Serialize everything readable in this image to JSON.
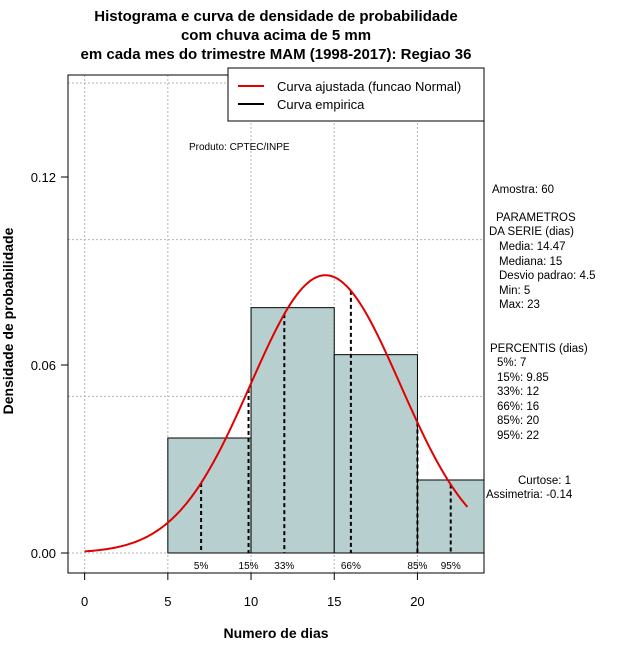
{
  "chart_data": {
    "type": "bar",
    "title_lines": [
      "Histograma e curva de densidade de probabilidade",
      "com chuva acima de 5 mm",
      "em cada mes do trimestre MAM (1998-2017): Regiao 36"
    ],
    "xlabel": "Numero de dias",
    "ylabel": "Densidade de probabilidade",
    "xlim": [
      -1,
      24
    ],
    "ylim": [
      0,
      0.15
    ],
    "x_ticks": [
      0,
      5,
      10,
      15,
      20
    ],
    "y_ticks": [
      0.0,
      0.06,
      0.12
    ],
    "y_tick_labels": [
      "0.00",
      "0.06",
      "0.12"
    ],
    "bins": [
      {
        "start": 5,
        "end": 10,
        "density": 0.0367
      },
      {
        "start": 10,
        "end": 15,
        "density": 0.0783
      },
      {
        "start": 15,
        "end": 20,
        "density": 0.0633
      },
      {
        "start": 20,
        "end": 24,
        "density": 0.0233
      }
    ],
    "bar_color": "#b7d0cf",
    "normal_curve": {
      "mean": 14.47,
      "sd": 4.5,
      "x_start": 0,
      "x_end": 23,
      "color": "#e00000"
    },
    "percentiles": [
      {
        "label": "5%",
        "x": 7
      },
      {
        "label": "15%",
        "x": 9.85
      },
      {
        "label": "33%",
        "x": 12
      },
      {
        "label": "66%",
        "x": 16
      },
      {
        "label": "85%",
        "x": 20
      },
      {
        "label": "95%",
        "x": 22
      }
    ],
    "legend": [
      {
        "label": "Curva ajustada (funcao Normal)",
        "color": "#e00000"
      },
      {
        "label": "Curva empirica",
        "color": "#000000"
      }
    ],
    "product_label": "Produto: CPTEC/INPE",
    "stats": {
      "amostra": "Amostra: 60",
      "params_header": [
        "PARAMETROS",
        "DA SERIE (dias)"
      ],
      "params": [
        "Media: 14.47",
        "Mediana: 15",
        "Desvio padrao: 4.5",
        "Min: 5",
        "Max: 23"
      ],
      "percentis_header": "PERCENTIS (dias)",
      "percentis": [
        "5%: 7",
        "15%: 9.85",
        "33%: 12",
        "66%: 16",
        "85%: 20",
        "95%: 22"
      ],
      "curtose": "Curtose: 1",
      "assimetria": "Assimetria: -0.14"
    }
  }
}
